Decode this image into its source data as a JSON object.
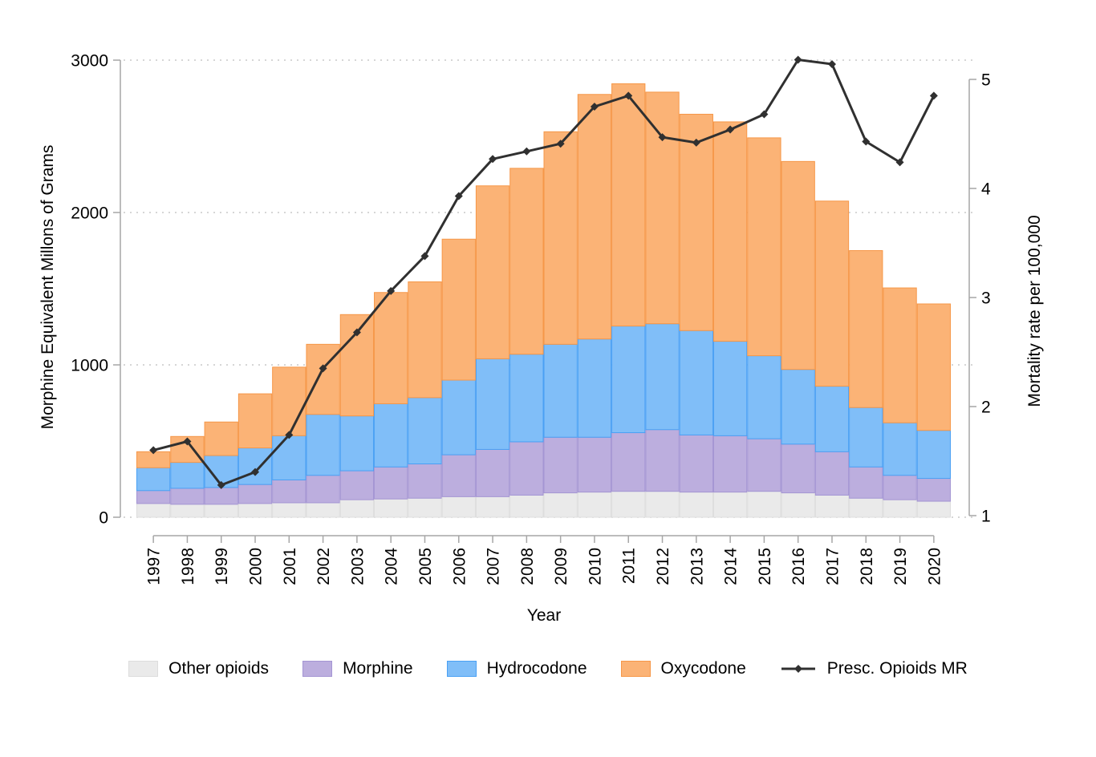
{
  "chart_data": {
    "type": "bar",
    "subtype": "stacked-bar-with-line-overlay",
    "categories": [
      "1997",
      "1998",
      "1999",
      "2000",
      "2001",
      "2002",
      "2003",
      "2004",
      "2005",
      "2006",
      "2007",
      "2008",
      "2009",
      "2010",
      "2011",
      "2012",
      "2013",
      "2014",
      "2015",
      "2016",
      "2017",
      "2018",
      "2019",
      "2020"
    ],
    "series": [
      {
        "name": "Other opioids",
        "color": "#eaeaea",
        "border_color": "#dddddd",
        "values": [
          90,
          85,
          85,
          90,
          95,
          95,
          115,
          120,
          125,
          135,
          135,
          145,
          160,
          165,
          170,
          170,
          165,
          165,
          170,
          160,
          145,
          125,
          115,
          105
        ]
      },
      {
        "name": "Morphine",
        "color": "#bcaede",
        "border_color": "#a495d3",
        "values": [
          85,
          105,
          110,
          125,
          150,
          180,
          190,
          210,
          225,
          275,
          310,
          350,
          365,
          360,
          385,
          405,
          375,
          370,
          345,
          320,
          285,
          205,
          160,
          150
        ]
      },
      {
        "name": "Hydrocodone",
        "color": "#80bef8",
        "border_color": "#4aa0f4",
        "values": [
          150,
          170,
          210,
          240,
          290,
          400,
          360,
          415,
          435,
          490,
          595,
          575,
          610,
          645,
          700,
          695,
          685,
          620,
          545,
          490,
          430,
          390,
          345,
          315
        ]
      },
      {
        "name": "Oxycodone",
        "color": "#fbb376",
        "border_color": "#f69748",
        "values": [
          105,
          170,
          220,
          355,
          450,
          460,
          665,
          730,
          760,
          925,
          1135,
          1220,
          1395,
          1605,
          1590,
          1520,
          1420,
          1440,
          1430,
          1365,
          1215,
          1030,
          885,
          830
        ]
      }
    ],
    "line_series": {
      "name": "Presc. Opioids MR",
      "color": "#303030",
      "axis": "right",
      "marker": "diamond",
      "values": [
        1.6,
        1.68,
        1.28,
        1.4,
        1.74,
        2.35,
        2.68,
        3.06,
        3.38,
        3.93,
        4.27,
        4.34,
        4.41,
        4.75,
        4.85,
        4.47,
        4.42,
        4.54,
        4.68,
        5.18,
        5.14,
        4.43,
        4.24,
        4.85
      ]
    },
    "left_axis": {
      "title": "Morphine Equivalent Millons of Grams",
      "ticks": [
        0,
        1000,
        2000,
        3000
      ],
      "range": [
        0,
        3000
      ],
      "grid": true
    },
    "right_axis": {
      "title": "Mortality rate per 100,000",
      "ticks": [
        1,
        2,
        3,
        4,
        5
      ],
      "range": [
        1,
        5
      ],
      "grid": false
    },
    "x_axis": {
      "title": "Year"
    },
    "legend_position": "bottom",
    "grid_style": "dotted",
    "background": "#ffffff"
  },
  "legend": {
    "items": [
      "Other opioids",
      "Morphine",
      "Hydrocodone",
      "Oxycodone",
      "Presc. Opioids MR"
    ]
  }
}
